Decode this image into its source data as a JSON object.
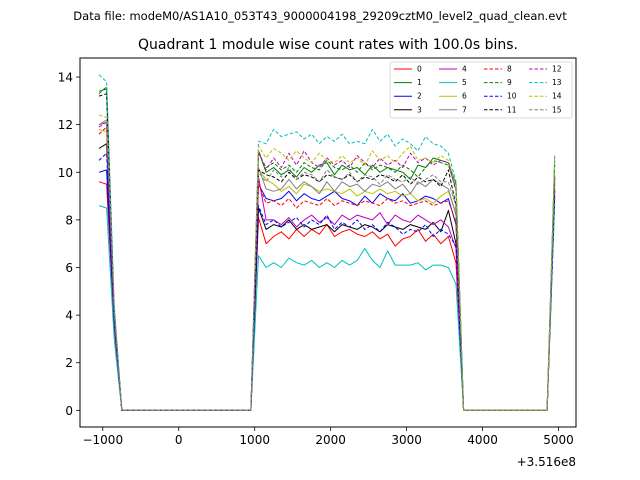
{
  "figure": {
    "suptitle": "Data file: modeM0/AS1A10_053T43_9000004198_29209cztM0_level2_quad_clean.evt",
    "title": "Quadrant 1 module wise count rates with 100.0s bins.",
    "x_offset_label": "+3.516e8"
  },
  "chart_data": {
    "type": "line",
    "title": "Quadrant 1 module wise count rates with 100.0s bins.",
    "xlabel": "",
    "ylabel": "",
    "x_offset": 351600000,
    "xlim": [
      -1300,
      5230
    ],
    "ylim": [
      -0.7,
      14.8
    ],
    "xticks": [
      -1000,
      0,
      1000,
      2000,
      3000,
      4000,
      5000
    ],
    "xtick_labels": [
      "−1000",
      "0",
      "1000",
      "2000",
      "3000",
      "4000",
      "5000"
    ],
    "yticks": [
      0,
      2,
      4,
      6,
      8,
      10,
      12,
      14
    ],
    "ytick_labels": [
      "0",
      "2",
      "4",
      "6",
      "8",
      "10",
      "12",
      "14"
    ],
    "grid": false,
    "legend": {
      "location": "top-right",
      "columns": 4
    },
    "x": [
      -1050,
      -950,
      -850,
      -750,
      950,
      1050,
      1150,
      1250,
      1350,
      1450,
      1550,
      1650,
      1750,
      1850,
      1950,
      2050,
      2150,
      2250,
      2350,
      2450,
      2550,
      2650,
      2750,
      2850,
      2950,
      3050,
      3150,
      3250,
      3350,
      3450,
      3550,
      3650,
      3750,
      4850,
      4950
    ],
    "gaps": [
      {
        "x": [
          -750,
          950
        ],
        "y": 0
      },
      {
        "x": [
          3750,
          4850
        ],
        "y": 0
      }
    ],
    "series": [
      {
        "name": "0",
        "color": "#ff0000",
        "dash": false,
        "values": [
          9.6,
          9.5,
          3.5,
          0,
          0,
          8.1,
          7.0,
          7.3,
          7.5,
          7.2,
          7.6,
          7.3,
          7.6,
          7.4,
          7.8,
          7.3,
          7.5,
          7.6,
          7.4,
          7.3,
          7.5,
          7.2,
          7.4,
          6.9,
          7.2,
          7.3,
          7.6,
          7.1,
          7.4,
          7.0,
          7.3,
          6.2,
          0,
          0,
          9.2
        ]
      },
      {
        "name": "1",
        "color": "#008000",
        "dash": false,
        "values": [
          13.4,
          13.5,
          4.0,
          0,
          0,
          10.9,
          10.0,
          10.2,
          9.9,
          10.1,
          9.8,
          10.2,
          10.0,
          10.3,
          10.4,
          9.9,
          10.3,
          10.1,
          10.2,
          9.9,
          10.3,
          10.0,
          10.2,
          10.1,
          10.0,
          9.7,
          10.3,
          10.2,
          10.6,
          10.5,
          10.4,
          9.5,
          0,
          0,
          10.3
        ]
      },
      {
        "name": "2",
        "color": "#0000ff",
        "dash": false,
        "values": [
          10.0,
          10.1,
          3.8,
          0,
          0,
          9.5,
          8.9,
          8.8,
          8.9,
          9.2,
          8.8,
          9.1,
          8.9,
          8.8,
          9.0,
          9.2,
          8.9,
          8.8,
          8.6,
          9.0,
          8.7,
          9.1,
          8.9,
          8.8,
          9.1,
          8.7,
          8.8,
          9.0,
          8.9,
          8.7,
          8.9,
          7.8,
          0,
          0,
          9.3
        ]
      },
      {
        "name": "3",
        "color": "#000000",
        "dash": false,
        "values": [
          11.0,
          11.2,
          3.9,
          0,
          0,
          8.5,
          7.6,
          7.8,
          7.7,
          8.0,
          7.6,
          7.8,
          7.6,
          7.7,
          7.8,
          7.5,
          7.8,
          7.7,
          7.6,
          7.8,
          7.7,
          7.5,
          7.8,
          7.7,
          7.6,
          7.8,
          7.7,
          7.6,
          7.9,
          7.5,
          8.4,
          7.0,
          0,
          0,
          9.0
        ]
      },
      {
        "name": "4",
        "color": "#bf00bf",
        "dash": false,
        "values": [
          12.0,
          12.1,
          4.1,
          0,
          0,
          9.8,
          8.0,
          8.0,
          7.8,
          8.1,
          7.7,
          8.0,
          8.2,
          7.9,
          8.1,
          7.8,
          8.2,
          8.0,
          8.2,
          8.1,
          8.0,
          8.3,
          7.8,
          8.2,
          8.0,
          7.9,
          8.2,
          8.0,
          7.8,
          8.0,
          7.7,
          6.8,
          0,
          0,
          9.5
        ]
      },
      {
        "name": "5",
        "color": "#00bfbf",
        "dash": false,
        "values": [
          8.6,
          8.5,
          3.0,
          0,
          0,
          6.5,
          6.0,
          6.2,
          6.0,
          6.4,
          6.2,
          6.1,
          6.3,
          6.0,
          6.2,
          6.0,
          6.3,
          6.1,
          6.3,
          6.8,
          6.3,
          6.0,
          6.7,
          6.1,
          6.1,
          6.1,
          6.2,
          5.9,
          6.1,
          6.1,
          6.0,
          5.3,
          0,
          0,
          8.7
        ]
      },
      {
        "name": "6",
        "color": "#bfbf00",
        "dash": false,
        "values": [
          11.8,
          11.7,
          4.0,
          0,
          0,
          10.1,
          9.7,
          9.5,
          9.2,
          9.4,
          9.1,
          9.5,
          9.4,
          9.2,
          9.3,
          9.2,
          9.1,
          9.3,
          9.0,
          9.2,
          9.1,
          9.3,
          9.1,
          9.2,
          9.0,
          9.1,
          8.8,
          8.9,
          8.7,
          9.0,
          9.2,
          8.3,
          0,
          0,
          9.6
        ]
      },
      {
        "name": "7",
        "color": "#808080",
        "dash": false,
        "values": [
          12.0,
          12.2,
          4.2,
          0,
          0,
          10.2,
          9.3,
          9.2,
          9.3,
          9.7,
          9.3,
          9.6,
          9.4,
          9.1,
          9.6,
          9.2,
          9.6,
          9.4,
          9.5,
          9.2,
          9.5,
          9.4,
          9.6,
          9.3,
          9.5,
          9.1,
          9.6,
          9.4,
          9.7,
          9.5,
          9.3,
          8.2,
          0,
          0,
          9.8
        ]
      },
      {
        "name": "8",
        "color": "#ff0000",
        "dash": true,
        "values": [
          11.6,
          11.9,
          4.1,
          0,
          0,
          9.5,
          8.7,
          8.8,
          8.6,
          8.9,
          8.5,
          8.8,
          8.7,
          8.6,
          8.9,
          8.6,
          8.8,
          8.7,
          8.6,
          8.8,
          8.7,
          8.6,
          8.9,
          8.7,
          8.8,
          8.6,
          8.7,
          8.8,
          8.6,
          8.7,
          8.8,
          7.9,
          0,
          0,
          9.7
        ]
      },
      {
        "name": "9",
        "color": "#008000",
        "dash": true,
        "values": [
          13.3,
          13.6,
          4.3,
          0,
          0,
          10.8,
          10.2,
          10.4,
          10.1,
          10.3,
          10.0,
          10.4,
          10.2,
          10.1,
          10.5,
          10.2,
          10.1,
          10.3,
          10.0,
          10.4,
          10.1,
          10.3,
          10.2,
          10.0,
          10.3,
          10.1,
          9.8,
          10.2,
          10.5,
          10.4,
          10.3,
          9.3,
          0,
          0,
          10.5
        ]
      },
      {
        "name": "10",
        "color": "#0000ff",
        "dash": true,
        "values": [
          10.5,
          10.8,
          3.7,
          0,
          0,
          8.6,
          7.8,
          8.0,
          7.7,
          7.9,
          8.1,
          7.7,
          8.0,
          7.8,
          8.2,
          7.6,
          7.9,
          7.7,
          8.0,
          7.6,
          7.8,
          7.5,
          7.9,
          7.7,
          7.4,
          7.6,
          7.5,
          7.8,
          7.3,
          7.6,
          7.4,
          6.9,
          0,
          0,
          9.2
        ]
      },
      {
        "name": "11",
        "color": "#000000",
        "dash": true,
        "values": [
          13.2,
          13.3,
          4.2,
          0,
          0,
          10.1,
          9.9,
          9.8,
          9.6,
          10.0,
          9.7,
          9.9,
          9.8,
          9.6,
          9.9,
          9.8,
          9.7,
          9.9,
          9.6,
          9.8,
          9.7,
          9.9,
          9.8,
          9.6,
          9.9,
          9.5,
          9.8,
          9.6,
          9.7,
          9.4,
          10.1,
          8.6,
          0,
          0,
          9.8
        ]
      },
      {
        "name": "12",
        "color": "#bf00bf",
        "dash": true,
        "values": [
          11.9,
          12.1,
          4.2,
          0,
          0,
          10.9,
          10.1,
          10.6,
          10.2,
          10.8,
          10.3,
          10.9,
          10.4,
          10.2,
          10.6,
          10.3,
          10.5,
          10.2,
          10.7,
          10.4,
          10.2,
          10.6,
          10.3,
          10.5,
          10.2,
          10.8,
          10.4,
          10.6,
          10.3,
          10.5,
          10.4,
          9.2,
          0,
          0,
          10.6
        ]
      },
      {
        "name": "13",
        "color": "#00bfbf",
        "dash": true,
        "values": [
          14.1,
          13.8,
          4.5,
          0,
          0,
          11.3,
          11.2,
          11.8,
          11.5,
          11.6,
          11.7,
          11.4,
          11.6,
          11.2,
          11.5,
          11.3,
          11.6,
          11.2,
          11.3,
          11.2,
          11.8,
          11.3,
          11.6,
          11.1,
          11.4,
          11.2,
          10.9,
          11.5,
          11.2,
          11.1,
          10.8,
          9.6,
          0,
          0,
          10.7
        ]
      },
      {
        "name": "14",
        "color": "#bfbf00",
        "dash": true,
        "values": [
          12.4,
          12.3,
          4.3,
          0,
          0,
          11.1,
          10.6,
          11.0,
          10.8,
          10.5,
          10.9,
          10.6,
          10.4,
          10.8,
          10.5,
          10.4,
          10.7,
          10.4,
          10.6,
          10.3,
          10.9,
          10.5,
          10.7,
          10.4,
          10.8,
          11.1,
          10.5,
          10.6,
          10.4,
          10.7,
          10.5,
          9.4,
          0,
          0,
          10.4
        ]
      },
      {
        "name": "15",
        "color": "#808080",
        "dash": true,
        "values": [
          12.0,
          12.1,
          4.1,
          0,
          0,
          10.0,
          9.6,
          10.1,
          9.8,
          10.2,
          9.7,
          10.0,
          9.9,
          9.6,
          10.1,
          9.8,
          9.7,
          10.0,
          9.6,
          9.9,
          9.8,
          9.5,
          9.9,
          9.7,
          9.6,
          9.8,
          9.5,
          9.7,
          9.9,
          9.6,
          9.6,
          8.6,
          0,
          0,
          9.9
        ]
      }
    ]
  }
}
